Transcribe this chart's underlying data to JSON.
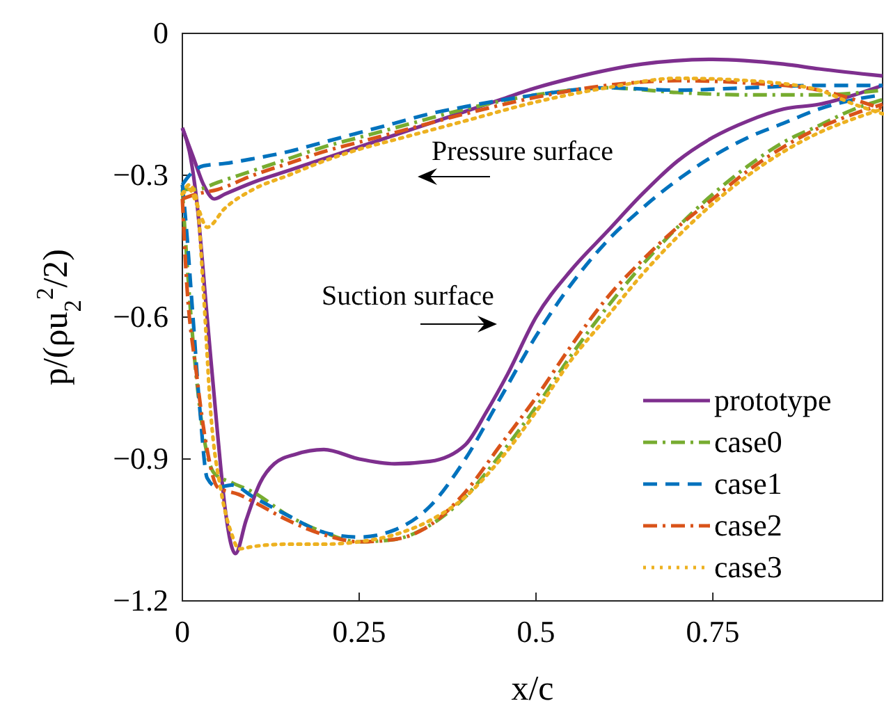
{
  "chart_data": {
    "type": "line",
    "xlabel": "x/c",
    "ylabel": "p/(ρu$_{2}$$^{2}$/2)",
    "xlim": [
      0,
      0.99
    ],
    "ylim": [
      -1.2,
      0
    ],
    "xticks": [
      0,
      0.25,
      0.5,
      0.75
    ],
    "yticks": [
      {
        "value": -1.2,
        "label": "−1.2"
      },
      {
        "value": -0.9,
        "label": "−0.9"
      },
      {
        "value": -0.6,
        "label": "−0.6"
      },
      {
        "value": -0.3,
        "label": "−0.3"
      },
      0
    ],
    "grid": false,
    "legend": "bottom right",
    "marker": "none",
    "annotations": [
      "Pressure surface",
      "Suction surface"
    ],
    "series": [
      {
        "name": "prototype",
        "color": "#7e2f8e",
        "line_style": "solid",
        "x": [
          0,
          0.01,
          0.02,
          0.035,
          0.05,
          0.06,
          0.075,
          0.09,
          0.11,
          0.13,
          0.16,
          0.2,
          0.25,
          0.3,
          0.35,
          0.4,
          0.43,
          0.46,
          0.5,
          0.55,
          0.6,
          0.65,
          0.7,
          0.75,
          0.8,
          0.85,
          0.9,
          0.95,
          0.99
        ],
        "values": [
          -0.2,
          -0.25,
          -0.35,
          -0.6,
          -0.85,
          -1.0,
          -1.1,
          -1.03,
          -0.95,
          -0.91,
          -0.89,
          -0.88,
          -0.9,
          -0.91,
          -0.905,
          -0.87,
          -0.8,
          -0.72,
          -0.6,
          -0.5,
          -0.42,
          -0.34,
          -0.27,
          -0.22,
          -0.185,
          -0.16,
          -0.15,
          -0.13,
          -0.11
        ]
      },
      {
        "color": "#7e2f8e",
        "line_style": "solid",
        "x": [
          0,
          0.015,
          0.03,
          0.045,
          0.06,
          0.1,
          0.15,
          0.2,
          0.25,
          0.3,
          0.35,
          0.4,
          0.45,
          0.5,
          0.55,
          0.65,
          0.75,
          0.85,
          0.9,
          0.99
        ],
        "values": [
          -0.2,
          -0.26,
          -0.32,
          -0.35,
          -0.34,
          -0.315,
          -0.29,
          -0.265,
          -0.24,
          -0.215,
          -0.19,
          -0.165,
          -0.14,
          -0.115,
          -0.095,
          -0.065,
          -0.055,
          -0.065,
          -0.075,
          -0.09
        ]
      },
      {
        "name": "case0",
        "color": "#77ac30",
        "line_style": "dashdot",
        "x": [
          0,
          0.005,
          0.015,
          0.03,
          0.045,
          0.07,
          0.1,
          0.15,
          0.2,
          0.25,
          0.3,
          0.35,
          0.4,
          0.45,
          0.5,
          0.55,
          0.6,
          0.65,
          0.7,
          0.75,
          0.8,
          0.85,
          0.9,
          0.95,
          0.99
        ],
        "values": [
          -0.33,
          -0.45,
          -0.65,
          -0.85,
          -0.93,
          -0.95,
          -0.97,
          -1.02,
          -1.055,
          -1.075,
          -1.07,
          -1.04,
          -0.98,
          -0.89,
          -0.79,
          -0.68,
          -0.58,
          -0.49,
          -0.41,
          -0.34,
          -0.28,
          -0.23,
          -0.195,
          -0.16,
          -0.14
        ]
      },
      {
        "color": "#77ac30",
        "line_style": "dashdot",
        "x": [
          0,
          0.02,
          0.05,
          0.1,
          0.15,
          0.2,
          0.25,
          0.3,
          0.4,
          0.5,
          0.6,
          0.7,
          0.8,
          0.9,
          0.99
        ],
        "values": [
          -0.33,
          -0.33,
          -0.315,
          -0.29,
          -0.265,
          -0.24,
          -0.22,
          -0.2,
          -0.16,
          -0.13,
          -0.115,
          -0.125,
          -0.13,
          -0.13,
          -0.12
        ]
      },
      {
        "name": "case1",
        "color": "#0072bd",
        "line_style": "dashed",
        "x": [
          0,
          0.005,
          0.015,
          0.025,
          0.035,
          0.05,
          0.07,
          0.1,
          0.15,
          0.2,
          0.25,
          0.3,
          0.35,
          0.4,
          0.45,
          0.5,
          0.55,
          0.6,
          0.65,
          0.7,
          0.75,
          0.8,
          0.85,
          0.9,
          0.95,
          0.99
        ],
        "values": [
          -0.32,
          -0.4,
          -0.6,
          -0.8,
          -0.94,
          -0.96,
          -0.955,
          -0.98,
          -1.02,
          -1.055,
          -1.065,
          -1.05,
          -1.0,
          -0.9,
          -0.77,
          -0.64,
          -0.53,
          -0.44,
          -0.37,
          -0.31,
          -0.26,
          -0.22,
          -0.19,
          -0.16,
          -0.14,
          -0.13
        ]
      },
      {
        "color": "#0072bd",
        "line_style": "dashed",
        "x": [
          0,
          0.01,
          0.03,
          0.06,
          0.1,
          0.15,
          0.2,
          0.25,
          0.3,
          0.35,
          0.4,
          0.5,
          0.6,
          0.7,
          0.8,
          0.9,
          0.99
        ],
        "values": [
          -0.32,
          -0.3,
          -0.28,
          -0.275,
          -0.265,
          -0.25,
          -0.23,
          -0.21,
          -0.19,
          -0.17,
          -0.155,
          -0.13,
          -0.115,
          -0.12,
          -0.115,
          -0.11,
          -0.11
        ]
      },
      {
        "name": "case2",
        "color": "#d95319",
        "line_style": "dashdot",
        "x": [
          0,
          0.005,
          0.02,
          0.035,
          0.05,
          0.08,
          0.1,
          0.15,
          0.2,
          0.25,
          0.3,
          0.35,
          0.4,
          0.45,
          0.5,
          0.55,
          0.6,
          0.65,
          0.7,
          0.75,
          0.8,
          0.85,
          0.9,
          0.95,
          0.99
        ],
        "values": [
          -0.35,
          -0.5,
          -0.72,
          -0.88,
          -0.96,
          -0.975,
          -0.99,
          -1.03,
          -1.06,
          -1.075,
          -1.07,
          -1.04,
          -0.97,
          -0.87,
          -0.77,
          -0.66,
          -0.56,
          -0.48,
          -0.41,
          -0.35,
          -0.29,
          -0.24,
          -0.2,
          -0.17,
          -0.15
        ]
      },
      {
        "color": "#d95319",
        "line_style": "dashdot",
        "x": [
          0,
          0.02,
          0.05,
          0.1,
          0.15,
          0.2,
          0.25,
          0.3,
          0.4,
          0.5,
          0.6,
          0.7,
          0.8,
          0.9,
          0.95,
          0.99
        ],
        "values": [
          -0.35,
          -0.34,
          -0.33,
          -0.3,
          -0.275,
          -0.25,
          -0.23,
          -0.21,
          -0.17,
          -0.135,
          -0.11,
          -0.1,
          -0.105,
          -0.12,
          -0.14,
          -0.16
        ]
      },
      {
        "name": "case3",
        "color": "#edb120",
        "line_style": "dotted",
        "x": [
          0,
          0.01,
          0.02,
          0.03,
          0.04,
          0.055,
          0.07,
          0.08,
          0.1,
          0.15,
          0.2,
          0.25,
          0.3,
          0.35,
          0.4,
          0.45,
          0.5,
          0.55,
          0.6,
          0.65,
          0.7,
          0.75,
          0.8,
          0.85,
          0.9,
          0.95,
          0.99
        ],
        "values": [
          -0.34,
          -0.32,
          -0.35,
          -0.55,
          -0.8,
          -0.97,
          -1.06,
          -1.09,
          -1.085,
          -1.08,
          -1.08,
          -1.075,
          -1.06,
          -1.03,
          -0.98,
          -0.9,
          -0.8,
          -0.69,
          -0.6,
          -0.51,
          -0.43,
          -0.36,
          -0.3,
          -0.25,
          -0.21,
          -0.18,
          -0.16
        ]
      },
      {
        "color": "#edb120",
        "line_style": "dotted",
        "x": [
          0,
          0.01,
          0.02,
          0.035,
          0.06,
          0.1,
          0.15,
          0.2,
          0.25,
          0.3,
          0.4,
          0.5,
          0.6,
          0.7,
          0.8,
          0.9,
          0.95,
          0.99
        ],
        "values": [
          -0.34,
          -0.33,
          -0.36,
          -0.41,
          -0.37,
          -0.33,
          -0.3,
          -0.27,
          -0.245,
          -0.225,
          -0.185,
          -0.145,
          -0.115,
          -0.095,
          -0.1,
          -0.12,
          -0.15,
          -0.17
        ]
      }
    ]
  }
}
